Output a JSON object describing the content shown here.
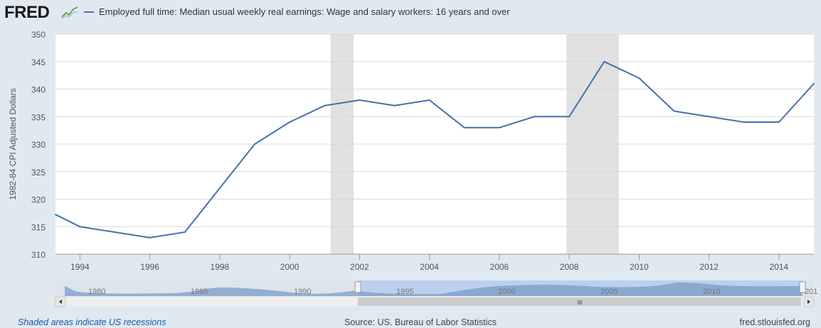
{
  "header": {
    "logo": "FRED",
    "legend_label": "Employed full time: Median usual weekly real earnings: Wage and salary workers: 16 years and over"
  },
  "chart_data": {
    "type": "line",
    "series": [
      {
        "name": "Employed full time: Median usual weekly real earnings: Wage and salary workers: 16 years and over",
        "color": "#4572a7",
        "x": [
          1993.3,
          1994,
          1995,
          1996,
          1997,
          1998,
          1999,
          2000,
          2001,
          2002,
          2003,
          2004,
          2005,
          2006,
          2007,
          2008,
          2009,
          2010,
          2011,
          2012,
          2013,
          2014,
          2015
        ],
        "values": [
          317.2,
          315,
          314,
          313,
          314,
          322,
          330,
          334,
          337,
          338,
          337,
          338,
          333,
          333,
          335,
          335,
          345,
          342,
          336,
          335,
          334,
          334,
          341
        ]
      }
    ],
    "xlim": [
      1993.3,
      2015
    ],
    "ylim": [
      310,
      350
    ],
    "xticks": [
      1994,
      1996,
      1998,
      2000,
      2002,
      2004,
      2006,
      2008,
      2010,
      2012,
      2014
    ],
    "yticks": [
      310,
      315,
      320,
      325,
      330,
      335,
      340,
      345,
      350
    ],
    "ylabel": "1982-84 CPI Adjusted Dollars",
    "recessions": [
      [
        2001.17,
        2001.83
      ],
      [
        2007.92,
        2009.42
      ]
    ],
    "navigator": {
      "labels": [
        "1980",
        "1985",
        "1990",
        "1995",
        "2000",
        "2005",
        "2010",
        "201"
      ],
      "scrollbar_glyph": "III"
    }
  },
  "footer": {
    "note": "Shaded areas indicate US recessions",
    "source": "Source: US. Bureau of Labor Statistics",
    "site": "fred.stlouisfed.org"
  }
}
